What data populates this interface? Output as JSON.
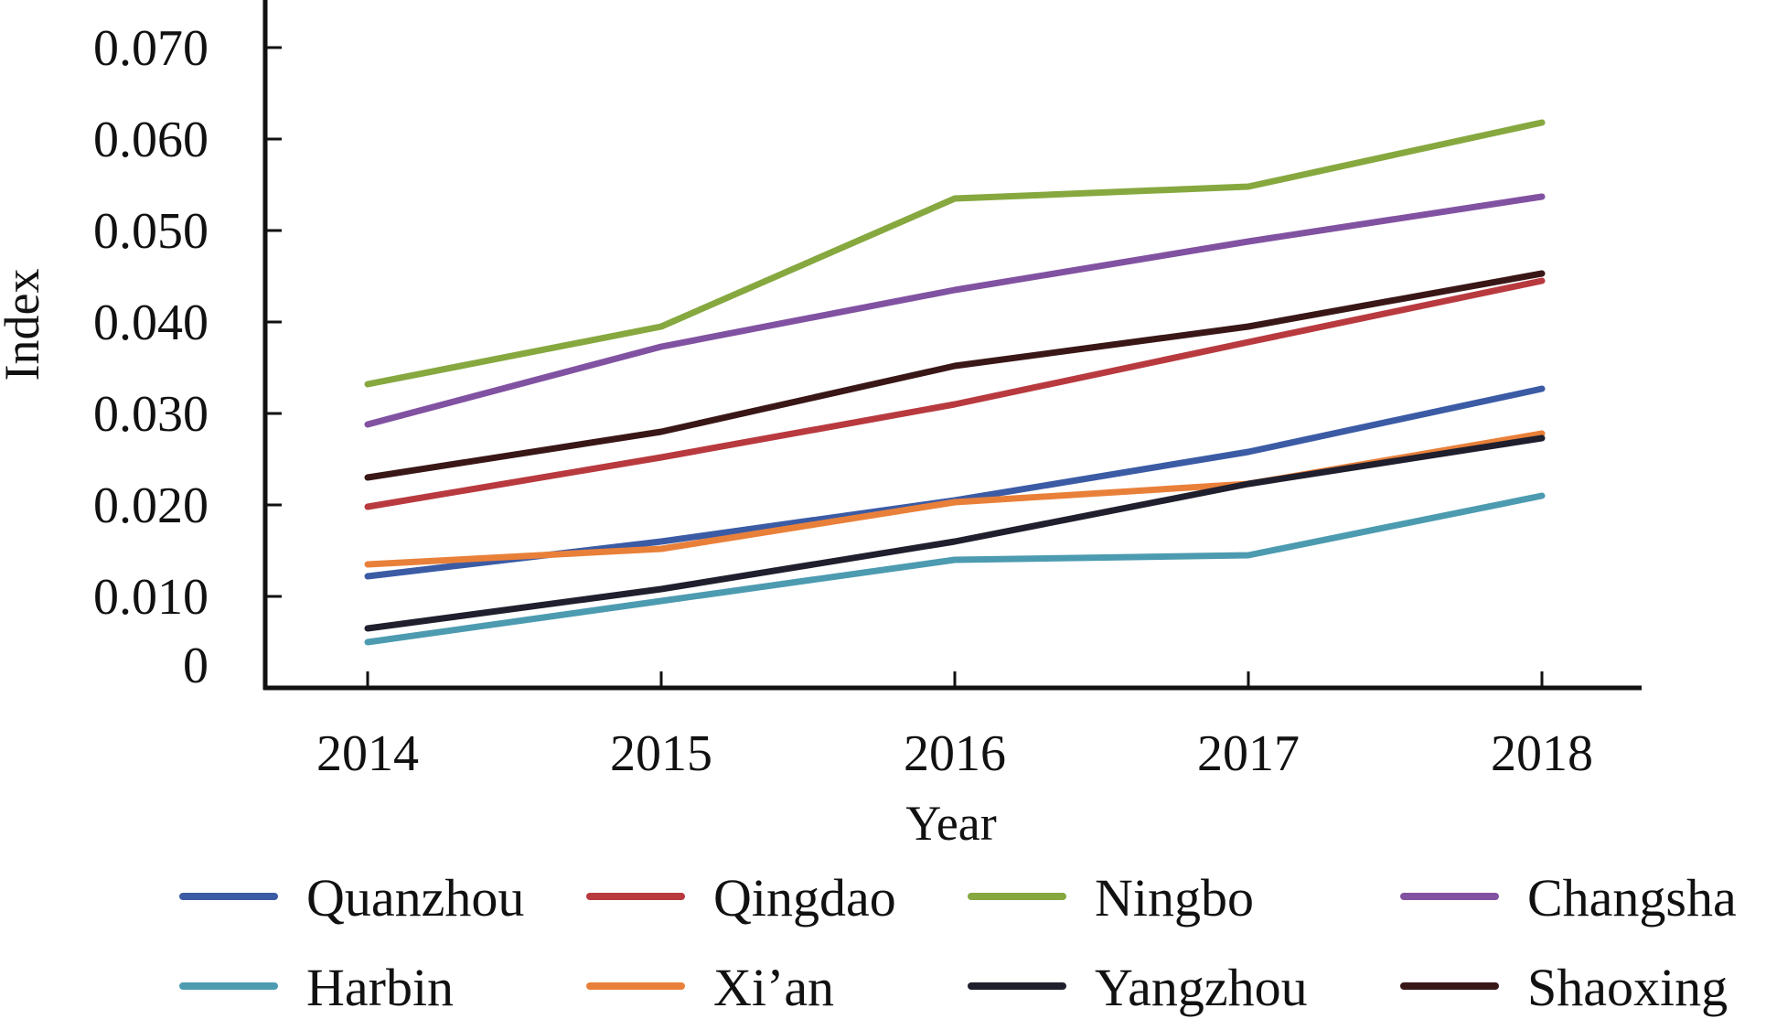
{
  "chart_data": {
    "type": "line",
    "xlabel": "Year",
    "ylabel": "Index",
    "categories": [
      "2014",
      "2015",
      "2016",
      "2017",
      "2018"
    ],
    "ylim": [
      0,
      0.075
    ],
    "yticks": [
      "0",
      "0.010",
      "0.020",
      "0.030",
      "0.040",
      "0.050",
      "0.060",
      "0.070"
    ],
    "ytick_values": [
      0,
      0.01,
      0.02,
      0.03,
      0.04,
      0.05,
      0.06,
      0.07
    ],
    "grid": false,
    "legend_position": "bottom",
    "series": [
      {
        "name": "Quanzhou",
        "color": "#3b5ba5",
        "values": [
          0.0122,
          0.016,
          0.0205,
          0.0258,
          0.0327
        ]
      },
      {
        "name": "Qingdao",
        "color": "#b83a3f",
        "values": [
          0.0198,
          0.0252,
          0.031,
          0.0378,
          0.0445
        ]
      },
      {
        "name": "Ningbo",
        "color": "#86a83f",
        "values": [
          0.0332,
          0.0395,
          0.0535,
          0.0548,
          0.0618
        ]
      },
      {
        "name": "Changsha",
        "color": "#8152a1",
        "values": [
          0.0288,
          0.0373,
          0.0435,
          0.0488,
          0.0537
        ]
      },
      {
        "name": "Harbin",
        "color": "#4c9bb0",
        "values": [
          0.005,
          0.0095,
          0.014,
          0.0145,
          0.021
        ]
      },
      {
        "name": "Xi’an",
        "color": "#e9803a",
        "values": [
          0.0135,
          0.0152,
          0.0203,
          0.0223,
          0.0278
        ]
      },
      {
        "name": "Yangzhou",
        "color": "#1f1f2e",
        "values": [
          0.0065,
          0.0108,
          0.016,
          0.0223,
          0.0273
        ]
      },
      {
        "name": "Shaoxing",
        "color": "#3a1717",
        "values": [
          0.023,
          0.028,
          0.0352,
          0.0395,
          0.0453
        ]
      }
    ]
  }
}
